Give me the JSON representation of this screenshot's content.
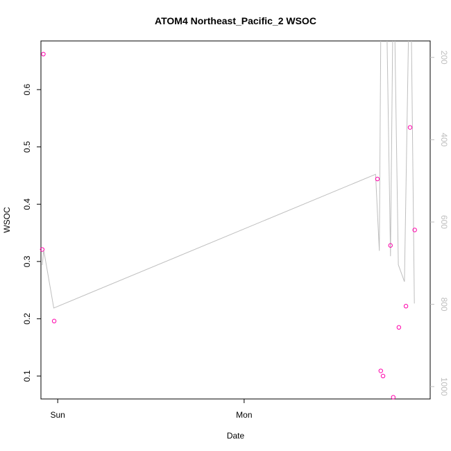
{
  "chart_data": {
    "type": "scatter",
    "title": "ATOM4 Northeast_Pacific_2 WSOC",
    "xlabel": "Date",
    "ylabel": "WSOC",
    "x_ticks": [
      {
        "label": "Sun",
        "value": 0
      },
      {
        "label": "Mon",
        "value": 1
      }
    ],
    "xlim": [
      -0.09,
      1.998
    ],
    "ylim": [
      0.06,
      0.685
    ],
    "y_ticks": [
      0.1,
      0.2,
      0.3,
      0.4,
      0.5,
      0.6
    ],
    "y_tick_labels": [
      "0.1",
      "0.2",
      "0.3",
      "0.4",
      "0.5",
      "0.6"
    ],
    "y2_ticks": [
      200,
      400,
      600,
      800,
      1000
    ],
    "y2_tick_labels": [
      "200",
      "400",
      "600",
      "800",
      "1000"
    ],
    "y2lim": [
      1030,
      160
    ],
    "grid": false,
    "colors": {
      "points": "#ff00aa",
      "line": "#bebebe",
      "axis": "#000000",
      "axis2": "#bebebe"
    },
    "series": [
      {
        "kind": "points",
        "values": [
          {
            "x": -0.077,
            "y": 0.662
          },
          {
            "x": -0.083,
            "y": 0.321
          },
          {
            "x": -0.019,
            "y": 0.196
          },
          {
            "x": 1.715,
            "y": 0.444
          },
          {
            "x": 1.733,
            "y": 0.109
          },
          {
            "x": 1.745,
            "y": 0.1
          },
          {
            "x": 1.785,
            "y": 0.328
          },
          {
            "x": 1.8,
            "y": 0.063
          },
          {
            "x": 1.83,
            "y": 0.185
          },
          {
            "x": 1.868,
            "y": 0.222
          },
          {
            "x": 1.89,
            "y": 0.534
          },
          {
            "x": 1.915,
            "y": 0.355
          }
        ]
      },
      {
        "kind": "line",
        "axis": "y2",
        "values": [
          {
            "x": -0.083,
            "y": 705
          },
          {
            "x": -0.075,
            "y": 668
          },
          {
            "x": -0.021,
            "y": 809
          },
          {
            "x": 1.705,
            "y": 484
          },
          {
            "x": 1.725,
            "y": 670
          },
          {
            "x": 1.733,
            "y": 140
          },
          {
            "x": 1.766,
            "y": 140
          },
          {
            "x": 1.785,
            "y": 683
          },
          {
            "x": 1.797,
            "y": 140
          },
          {
            "x": 1.808,
            "y": 140
          },
          {
            "x": 1.827,
            "y": 704
          },
          {
            "x": 1.86,
            "y": 745
          },
          {
            "x": 1.882,
            "y": 140
          },
          {
            "x": 1.897,
            "y": 140
          },
          {
            "x": 1.913,
            "y": 798
          }
        ]
      }
    ]
  }
}
